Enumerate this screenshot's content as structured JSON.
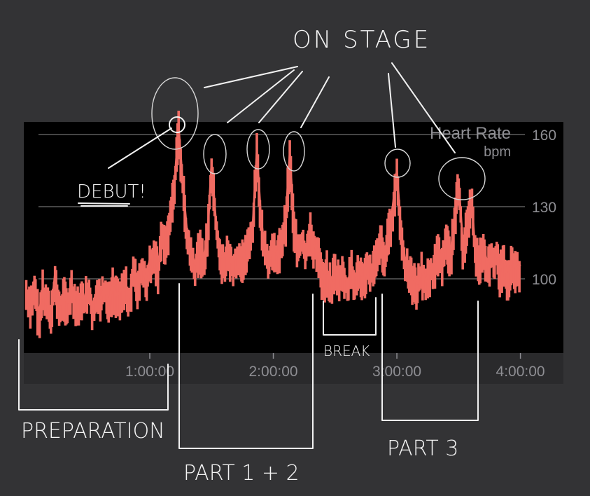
{
  "chart_data": {
    "type": "line",
    "title": "Heart Rate",
    "ylabel": "bpm",
    "xlabel": "",
    "y_ticks": [
      "100",
      "130",
      "160"
    ],
    "y_tick_values": [
      100,
      130,
      160
    ],
    "x_ticks": [
      "1:00:00",
      "2:00:00",
      "3:00:00",
      "4:00:00"
    ],
    "x_tick_values_minutes": [
      60,
      120,
      180,
      240
    ],
    "xlim_minutes": [
      0,
      250
    ],
    "ylim": [
      69,
      165
    ],
    "grid": true,
    "series_color": "#f06b62",
    "background": "#000000",
    "x_minutes_step": 2,
    "values": [
      95,
      88,
      100,
      84,
      96,
      90,
      86,
      102,
      88,
      94,
      90,
      96,
      88,
      93,
      91,
      98,
      89,
      94,
      92,
      96,
      90,
      97,
      93,
      95,
      99,
      92,
      104,
      98,
      106,
      100,
      108,
      112,
      104,
      120,
      115,
      128,
      140,
      163,
      140,
      120,
      112,
      106,
      114,
      108,
      118,
      148,
      125,
      110,
      108,
      112,
      106,
      110,
      108,
      112,
      115,
      122,
      153,
      125,
      112,
      108,
      115,
      110,
      118,
      125,
      152,
      122,
      115,
      118,
      112,
      120,
      114,
      110,
      100,
      104,
      98,
      106,
      100,
      103,
      98,
      105,
      101,
      104,
      99,
      107,
      104,
      112,
      118,
      110,
      120,
      130,
      145,
      120,
      108,
      102,
      100,
      98,
      104,
      99,
      103,
      106,
      112,
      108,
      116,
      110,
      125,
      140,
      115,
      122,
      136,
      112,
      108,
      114,
      106,
      110,
      112,
      104,
      108,
      100,
      110,
      104,
      106
    ]
  },
  "annotations": {
    "on_stage": "ON STAGE",
    "debut": "DEBUT!",
    "preparation": "PREPARATION",
    "part_1_2": "PART 1 + 2",
    "break": "BREAK",
    "part_3": "PART 3"
  }
}
